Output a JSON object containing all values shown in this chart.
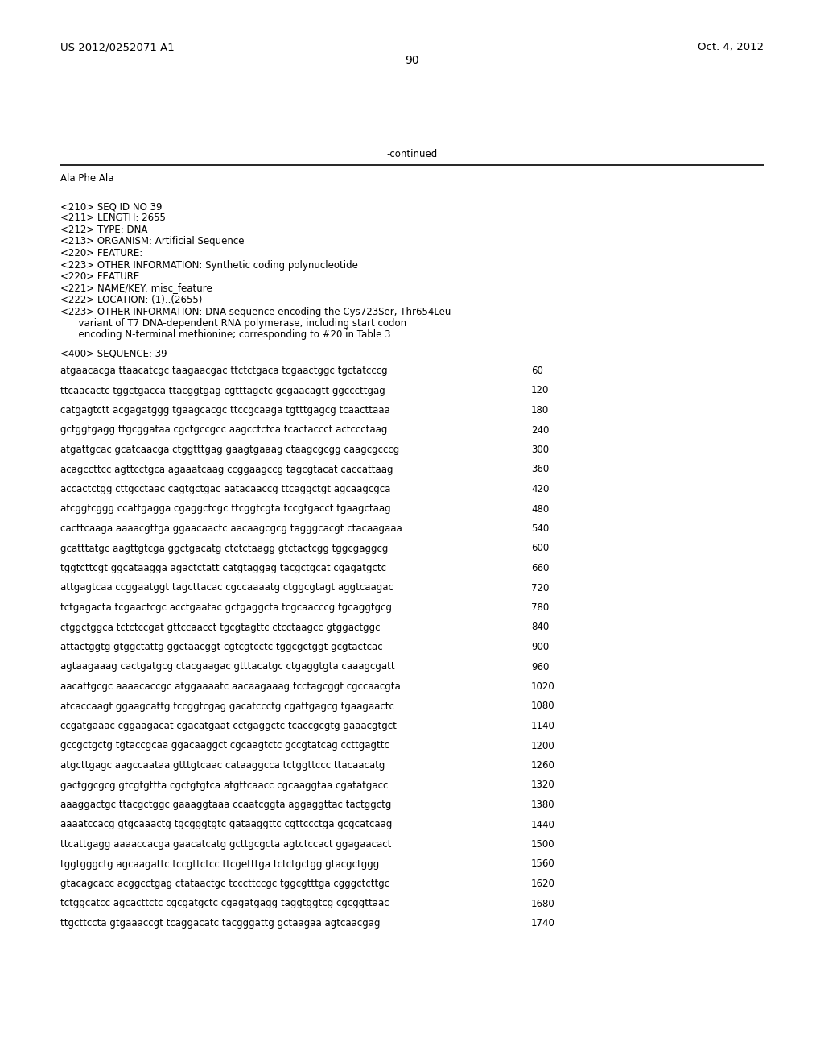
{
  "header_left": "US 2012/0252071 A1",
  "header_right": "Oct. 4, 2012",
  "page_number": "90",
  "continued_text": "-continued",
  "background_color": "#ffffff",
  "text_color": "#000000",
  "meta_lines": [
    "<210> SEQ ID NO 39",
    "<211> LENGTH: 2655",
    "<212> TYPE: DNA",
    "<213> ORGANISM: Artificial Sequence",
    "<220> FEATURE:",
    "<223> OTHER INFORMATION: Synthetic coding polynucleotide",
    "<220> FEATURE:",
    "<221> NAME/KEY: misc_feature",
    "<222> LOCATION: (1)..(2655)",
    "<223> OTHER INFORMATION: DNA sequence encoding the Cys723Ser, Thr654Leu",
    "      variant of T7 DNA-dependent RNA polymerase, including start codon",
    "      encoding N-terminal methionine; corresponding to #20 in Table 3"
  ],
  "seq_lines": [
    [
      "atgaacacga ttaacatcgc taagaacgac ttctctgaca tcgaactggc tgctatcccg",
      "60"
    ],
    [
      "ttcaacactc tggctgacca ttacggtgag cgtttagctc gcgaacagtt ggcccttgag",
      "120"
    ],
    [
      "catgagtctt acgagatggg tgaagcacgc ttccgcaaga tgtttgagcg tcaacttaaa",
      "180"
    ],
    [
      "gctggtgagg ttgcggataa cgctgccgcc aagcctctca tcactaccct actccctaag",
      "240"
    ],
    [
      "atgattgcac gcatcaacga ctggtttgag gaagtgaaag ctaagcgcgg caagcgcccg",
      "300"
    ],
    [
      "acagccttcc agttcctgca agaaatcaag ccggaagccg tagcgtacat caccattaag",
      "360"
    ],
    [
      "accactctgg cttgcctaac cagtgctgac aatacaaccg ttcaggctgt agcaagcgca",
      "420"
    ],
    [
      "atcggtcggg ccattgagga cgaggctcgc ttcggtcgta tccgtgacct tgaagctaag",
      "480"
    ],
    [
      "cacttcaaga aaaacgttga ggaacaactc aacaagcgcg tagggcacgt ctacaagaaa",
      "540"
    ],
    [
      "gcatttatgc aagttgtcga ggctgacatg ctctctaagg gtctactcgg tggcgaggcg",
      "600"
    ],
    [
      "tggtcttcgt ggcataagga agactctatt catgtaggag tacgctgcat cgagatgctc",
      "660"
    ],
    [
      "attgagtcaa ccggaatggt tagcttacac cgccaaaatg ctggcgtagt aggtcaagac",
      "720"
    ],
    [
      "tctgagacta tcgaactcgc acctgaatac gctgaggcta tcgcaacccg tgcaggtgcg",
      "780"
    ],
    [
      "ctggctggca tctctccgat gttccaacct tgcgtagttc ctcctaagcc gtggactggc",
      "840"
    ],
    [
      "attactggtg gtggctattg ggctaacggt cgtcgtcctc tggcgctggt gcgtactcac",
      "900"
    ],
    [
      "agtaagaaag cactgatgcg ctacgaagac gtttacatgc ctgaggtgta caaagcgatt",
      "960"
    ],
    [
      "aacattgcgc aaaacaccgc atggaaaatc aacaagaaag tcctagcggt cgccaacgta",
      "1020"
    ],
    [
      "atcaccaagt ggaagcattg tccggtcgag gacatccctg cgattgagcg tgaagaactc",
      "1080"
    ],
    [
      "ccgatgaaac cggaagacat cgacatgaat cctgaggctc tcaccgcgtg gaaacgtgct",
      "1140"
    ],
    [
      "gccgctgctg tgtaccgcaa ggacaaggct cgcaagtctc gccgtatcag ccttgagttc",
      "1200"
    ],
    [
      "atgcttgagc aagccaataa gtttgtcaac cataaggcca tctggttccc ttacaacatg",
      "1260"
    ],
    [
      "gactggcgcg gtcgtgttta cgctgtgtca atgttcaacc cgcaaggtaa cgatatgacc",
      "1320"
    ],
    [
      "aaaggactgc ttacgctggc gaaaggtaaa ccaatcggta aggaggttac tactggctg",
      "1380"
    ],
    [
      "aaaatccacg gtgcaaactg tgcgggtgtc gataaggttc cgttccctga gcgcatcaag",
      "1440"
    ],
    [
      "ttcattgagg aaaaccacga gaacatcatg gcttgcgcta agtctccact ggagaacact",
      "1500"
    ],
    [
      "tggtgggctg agcaagattc tccgttctcc ttcgetttga tctctgctgg gtacgctggg",
      "1560"
    ],
    [
      "gtacagcacc acggcctgag ctataactgc tcccttccgc tggcgtttga cgggctcttgc",
      "1620"
    ],
    [
      "tctggcatcc agcacttctc cgcgatgctc cgagatgagg taggtggtcg cgcggttaac",
      "1680"
    ],
    [
      "ttgcttccta gtgaaaccgt tcaggacatc tacgggattg gctaagaa agtcaacgag",
      "1740"
    ]
  ]
}
